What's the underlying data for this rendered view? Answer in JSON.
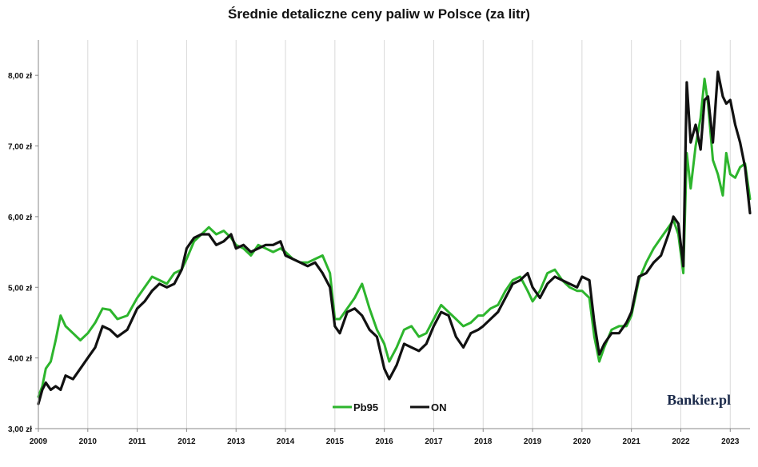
{
  "chart_data": {
    "type": "line",
    "title": "Średnie detaliczne ceny paliw w Polsce (za litr)",
    "xlabel": "",
    "ylabel": "",
    "ylim": [
      3.0,
      8.5
    ],
    "xlim": [
      2009.0,
      2023.4
    ],
    "grid": {
      "vertical": true,
      "horizontal": false
    },
    "legend": "bottom-center",
    "y_ticks": [
      {
        "value": 3.0,
        "label": "3,00 zł"
      },
      {
        "value": 4.0,
        "label": "4,00 zł"
      },
      {
        "value": 5.0,
        "label": "5,00 zł"
      },
      {
        "value": 6.0,
        "label": "6,00 zł"
      },
      {
        "value": 7.0,
        "label": "7,00 zł"
      },
      {
        "value": 8.0,
        "label": "8,00 zł"
      }
    ],
    "x_ticks": [
      {
        "value": 2009,
        "label": "2009"
      },
      {
        "value": 2010,
        "label": "2010"
      },
      {
        "value": 2011,
        "label": "2011"
      },
      {
        "value": 2012,
        "label": "2012"
      },
      {
        "value": 2013,
        "label": "2013"
      },
      {
        "value": 2014,
        "label": "2014"
      },
      {
        "value": 2015,
        "label": "2015"
      },
      {
        "value": 2016,
        "label": "2016"
      },
      {
        "value": 2017,
        "label": "2017"
      },
      {
        "value": 2018,
        "label": "2018"
      },
      {
        "value": 2019,
        "label": "2019"
      },
      {
        "value": 2020,
        "label": "2020"
      },
      {
        "value": 2021,
        "label": "2021"
      },
      {
        "value": 2022,
        "label": "2022"
      },
      {
        "value": 2023,
        "label": "2023"
      }
    ],
    "series": [
      {
        "name": "Pb95",
        "color": "#2db52d",
        "points": [
          [
            2009.0,
            3.45
          ],
          [
            2009.08,
            3.6
          ],
          [
            2009.15,
            3.85
          ],
          [
            2009.25,
            3.95
          ],
          [
            2009.35,
            4.25
          ],
          [
            2009.45,
            4.6
          ],
          [
            2009.55,
            4.45
          ],
          [
            2009.7,
            4.35
          ],
          [
            2009.85,
            4.25
          ],
          [
            2010.0,
            4.35
          ],
          [
            2010.15,
            4.5
          ],
          [
            2010.3,
            4.7
          ],
          [
            2010.45,
            4.68
          ],
          [
            2010.6,
            4.55
          ],
          [
            2010.8,
            4.6
          ],
          [
            2011.0,
            4.85
          ],
          [
            2011.15,
            5.0
          ],
          [
            2011.3,
            5.15
          ],
          [
            2011.45,
            5.1
          ],
          [
            2011.6,
            5.05
          ],
          [
            2011.75,
            5.2
          ],
          [
            2011.9,
            5.25
          ],
          [
            2012.0,
            5.4
          ],
          [
            2012.15,
            5.65
          ],
          [
            2012.3,
            5.75
          ],
          [
            2012.45,
            5.85
          ],
          [
            2012.6,
            5.75
          ],
          [
            2012.75,
            5.8
          ],
          [
            2012.9,
            5.7
          ],
          [
            2013.0,
            5.6
          ],
          [
            2013.15,
            5.55
          ],
          [
            2013.3,
            5.45
          ],
          [
            2013.45,
            5.6
          ],
          [
            2013.6,
            5.55
          ],
          [
            2013.75,
            5.5
          ],
          [
            2013.9,
            5.55
          ],
          [
            2014.0,
            5.5
          ],
          [
            2014.15,
            5.4
          ],
          [
            2014.3,
            5.35
          ],
          [
            2014.45,
            5.35
          ],
          [
            2014.6,
            5.4
          ],
          [
            2014.75,
            5.45
          ],
          [
            2014.9,
            5.2
          ],
          [
            2015.0,
            4.55
          ],
          [
            2015.1,
            4.55
          ],
          [
            2015.25,
            4.7
          ],
          [
            2015.4,
            4.85
          ],
          [
            2015.55,
            5.05
          ],
          [
            2015.7,
            4.7
          ],
          [
            2015.85,
            4.4
          ],
          [
            2016.0,
            4.2
          ],
          [
            2016.1,
            3.95
          ],
          [
            2016.25,
            4.15
          ],
          [
            2016.4,
            4.4
          ],
          [
            2016.55,
            4.45
          ],
          [
            2016.7,
            4.3
          ],
          [
            2016.85,
            4.35
          ],
          [
            2017.0,
            4.55
          ],
          [
            2017.15,
            4.75
          ],
          [
            2017.3,
            4.65
          ],
          [
            2017.45,
            4.55
          ],
          [
            2017.6,
            4.45
          ],
          [
            2017.75,
            4.5
          ],
          [
            2017.9,
            4.6
          ],
          [
            2018.0,
            4.6
          ],
          [
            2018.15,
            4.7
          ],
          [
            2018.3,
            4.75
          ],
          [
            2018.45,
            4.95
          ],
          [
            2018.6,
            5.1
          ],
          [
            2018.75,
            5.15
          ],
          [
            2018.9,
            4.95
          ],
          [
            2019.0,
            4.8
          ],
          [
            2019.15,
            4.95
          ],
          [
            2019.3,
            5.2
          ],
          [
            2019.45,
            5.25
          ],
          [
            2019.6,
            5.1
          ],
          [
            2019.75,
            5.0
          ],
          [
            2019.9,
            4.95
          ],
          [
            2020.0,
            4.95
          ],
          [
            2020.15,
            4.85
          ],
          [
            2020.25,
            4.3
          ],
          [
            2020.35,
            3.95
          ],
          [
            2020.45,
            4.15
          ],
          [
            2020.6,
            4.4
          ],
          [
            2020.75,
            4.45
          ],
          [
            2020.9,
            4.45
          ],
          [
            2021.0,
            4.6
          ],
          [
            2021.15,
            5.1
          ],
          [
            2021.3,
            5.35
          ],
          [
            2021.45,
            5.55
          ],
          [
            2021.6,
            5.7
          ],
          [
            2021.75,
            5.85
          ],
          [
            2021.85,
            5.95
          ],
          [
            2021.95,
            5.75
          ],
          [
            2022.05,
            5.2
          ],
          [
            2022.12,
            6.9
          ],
          [
            2022.2,
            6.4
          ],
          [
            2022.3,
            7.0
          ],
          [
            2022.4,
            7.4
          ],
          [
            2022.48,
            7.95
          ],
          [
            2022.55,
            7.6
          ],
          [
            2022.65,
            6.8
          ],
          [
            2022.75,
            6.6
          ],
          [
            2022.85,
            6.3
          ],
          [
            2022.92,
            6.9
          ],
          [
            2023.0,
            6.6
          ],
          [
            2023.1,
            6.55
          ],
          [
            2023.2,
            6.7
          ],
          [
            2023.3,
            6.75
          ],
          [
            2023.4,
            6.25
          ]
        ]
      },
      {
        "name": "ON",
        "color": "#111111",
        "points": [
          [
            2009.0,
            3.35
          ],
          [
            2009.08,
            3.55
          ],
          [
            2009.15,
            3.65
          ],
          [
            2009.25,
            3.55
          ],
          [
            2009.35,
            3.6
          ],
          [
            2009.45,
            3.55
          ],
          [
            2009.55,
            3.75
          ],
          [
            2009.7,
            3.7
          ],
          [
            2009.85,
            3.85
          ],
          [
            2010.0,
            4.0
          ],
          [
            2010.15,
            4.15
          ],
          [
            2010.3,
            4.45
          ],
          [
            2010.45,
            4.4
          ],
          [
            2010.6,
            4.3
          ],
          [
            2010.8,
            4.4
          ],
          [
            2011.0,
            4.7
          ],
          [
            2011.15,
            4.8
          ],
          [
            2011.3,
            4.95
          ],
          [
            2011.45,
            5.05
          ],
          [
            2011.6,
            5.0
          ],
          [
            2011.75,
            5.05
          ],
          [
            2011.9,
            5.25
          ],
          [
            2012.0,
            5.55
          ],
          [
            2012.15,
            5.7
          ],
          [
            2012.3,
            5.75
          ],
          [
            2012.45,
            5.75
          ],
          [
            2012.6,
            5.6
          ],
          [
            2012.75,
            5.65
          ],
          [
            2012.9,
            5.75
          ],
          [
            2013.0,
            5.55
          ],
          [
            2013.15,
            5.6
          ],
          [
            2013.3,
            5.5
          ],
          [
            2013.45,
            5.55
          ],
          [
            2013.6,
            5.6
          ],
          [
            2013.75,
            5.6
          ],
          [
            2013.9,
            5.65
          ],
          [
            2014.0,
            5.45
          ],
          [
            2014.15,
            5.4
          ],
          [
            2014.3,
            5.35
          ],
          [
            2014.45,
            5.3
          ],
          [
            2014.6,
            5.35
          ],
          [
            2014.75,
            5.2
          ],
          [
            2014.9,
            5.0
          ],
          [
            2015.0,
            4.45
          ],
          [
            2015.1,
            4.35
          ],
          [
            2015.25,
            4.65
          ],
          [
            2015.4,
            4.7
          ],
          [
            2015.55,
            4.6
          ],
          [
            2015.7,
            4.4
          ],
          [
            2015.85,
            4.3
          ],
          [
            2016.0,
            3.85
          ],
          [
            2016.1,
            3.7
          ],
          [
            2016.25,
            3.9
          ],
          [
            2016.4,
            4.2
          ],
          [
            2016.55,
            4.15
          ],
          [
            2016.7,
            4.1
          ],
          [
            2016.85,
            4.2
          ],
          [
            2017.0,
            4.45
          ],
          [
            2017.15,
            4.65
          ],
          [
            2017.3,
            4.6
          ],
          [
            2017.45,
            4.3
          ],
          [
            2017.6,
            4.15
          ],
          [
            2017.75,
            4.35
          ],
          [
            2017.9,
            4.4
          ],
          [
            2018.0,
            4.45
          ],
          [
            2018.15,
            4.55
          ],
          [
            2018.3,
            4.65
          ],
          [
            2018.45,
            4.85
          ],
          [
            2018.6,
            5.05
          ],
          [
            2018.75,
            5.1
          ],
          [
            2018.9,
            5.2
          ],
          [
            2019.0,
            5.0
          ],
          [
            2019.15,
            4.85
          ],
          [
            2019.3,
            5.05
          ],
          [
            2019.45,
            5.15
          ],
          [
            2019.6,
            5.1
          ],
          [
            2019.75,
            5.05
          ],
          [
            2019.9,
            5.0
          ],
          [
            2020.0,
            5.15
          ],
          [
            2020.15,
            5.1
          ],
          [
            2020.25,
            4.5
          ],
          [
            2020.35,
            4.05
          ],
          [
            2020.45,
            4.2
          ],
          [
            2020.6,
            4.35
          ],
          [
            2020.75,
            4.35
          ],
          [
            2020.9,
            4.5
          ],
          [
            2021.0,
            4.65
          ],
          [
            2021.15,
            5.15
          ],
          [
            2021.3,
            5.2
          ],
          [
            2021.45,
            5.35
          ],
          [
            2021.6,
            5.45
          ],
          [
            2021.75,
            5.75
          ],
          [
            2021.85,
            6.0
          ],
          [
            2021.95,
            5.9
          ],
          [
            2022.05,
            5.3
          ],
          [
            2022.12,
            7.9
          ],
          [
            2022.2,
            7.05
          ],
          [
            2022.3,
            7.3
          ],
          [
            2022.4,
            6.95
          ],
          [
            2022.48,
            7.65
          ],
          [
            2022.55,
            7.7
          ],
          [
            2022.65,
            7.05
          ],
          [
            2022.75,
            8.05
          ],
          [
            2022.85,
            7.7
          ],
          [
            2022.92,
            7.6
          ],
          [
            2023.0,
            7.65
          ],
          [
            2023.1,
            7.3
          ],
          [
            2023.2,
            7.05
          ],
          [
            2023.3,
            6.7
          ],
          [
            2023.4,
            6.05
          ]
        ]
      }
    ]
  },
  "branding": {
    "logo_text": "Bankier.pl"
  }
}
